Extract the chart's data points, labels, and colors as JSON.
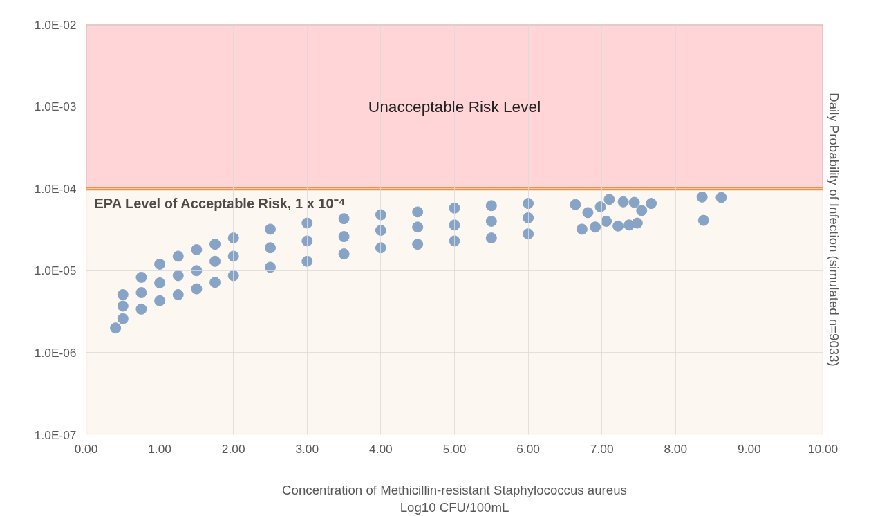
{
  "chart_data": {
    "type": "scatter",
    "xlabel": "Concentration of Methicillin-resistant Staphylococcus aureus\nLog10 CFU/100mL",
    "ylabel": "Daily Probability of Infection (simulated n=9033)",
    "x": [
      0.4,
      0.5,
      0.5,
      0.5,
      0.75,
      0.75,
      0.75,
      1.0,
      1.0,
      1.0,
      1.25,
      1.25,
      1.25,
      1.5,
      1.5,
      1.5,
      1.75,
      1.75,
      1.75,
      2.0,
      2.0,
      2.0,
      2.5,
      2.5,
      2.5,
      3.0,
      3.0,
      3.0,
      3.5,
      3.5,
      3.5,
      4.0,
      4.0,
      4.0,
      4.5,
      4.5,
      4.5,
      5.0,
      5.0,
      5.0,
      5.5,
      5.5,
      5.5,
      6.0,
      6.0,
      6.0,
      6.64,
      6.73,
      6.81,
      6.91,
      6.98,
      7.06,
      7.1,
      7.22,
      7.29,
      7.37,
      7.44,
      7.48,
      7.54,
      7.67,
      8.36,
      8.38,
      8.62
    ],
    "values": [
      2e-06,
      5.1e-06,
      3.7e-06,
      2.6e-06,
      8.3e-06,
      5.4e-06,
      3.4e-06,
      1.2e-05,
      7.1e-06,
      4.3e-06,
      1.5e-05,
      8.7e-06,
      5.1e-06,
      1.8e-05,
      1e-05,
      6e-06,
      2.1e-05,
      1.3e-05,
      7.2e-06,
      2.5e-05,
      1.5e-05,
      8.7e-06,
      3.2e-05,
      1.9e-05,
      1.1e-05,
      3.8e-05,
      2.3e-05,
      1.3e-05,
      4.3e-05,
      2.6e-05,
      1.6e-05,
      4.8e-05,
      3.1e-05,
      1.9e-05,
      5.2e-05,
      3.4e-05,
      2.1e-05,
      5.8e-05,
      3.6e-05,
      2.3e-05,
      6.2e-05,
      4e-05,
      2.5e-05,
      6.6e-05,
      4.4e-05,
      2.8e-05,
      6.4e-05,
      3.2e-05,
      5.1e-05,
      3.4e-05,
      6e-05,
      4e-05,
      7.4e-05,
      3.5e-05,
      6.9e-05,
      3.6e-05,
      6.8e-05,
      3.8e-05,
      5.4e-05,
      6.6e-05,
      7.9e-05,
      4.1e-05,
      7.8e-05
    ],
    "color": "#87a3c6",
    "marker": "circle",
    "log": "y",
    "xlim": [
      0,
      10
    ],
    "xticks": [
      {
        "value": 0,
        "label": "0.00"
      },
      {
        "value": 1,
        "label": "1.00"
      },
      {
        "value": 2,
        "label": "2.00"
      },
      {
        "value": 3,
        "label": "3.00"
      },
      {
        "value": 4,
        "label": "4.00"
      },
      {
        "value": 5,
        "label": "5.00"
      },
      {
        "value": 6,
        "label": "6.00"
      },
      {
        "value": 7,
        "label": "7.00"
      },
      {
        "value": 8,
        "label": "8.00"
      },
      {
        "value": 9,
        "label": "9.00"
      },
      {
        "value": 10,
        "label": "10.00"
      }
    ],
    "ylim": [
      1e-07,
      0.01
    ],
    "yticks": [
      {
        "value": 1e-07,
        "label": "1.0E-07"
      },
      {
        "value": 1e-06,
        "label": "1.0E-06"
      },
      {
        "value": 1e-05,
        "label": "1.0E-05"
      },
      {
        "value": 0.0001,
        "label": "1.0E-04"
      },
      {
        "value": 0.001,
        "label": "1.0E-03"
      },
      {
        "value": 0.01,
        "label": "1.0E-02"
      }
    ],
    "grid": true,
    "bands": [
      {
        "axis": "y",
        "from": 0.0001,
        "to": 0.01,
        "label": "Unacceptable Risk Level",
        "color": "#ffd5d7"
      },
      {
        "axis": "y",
        "from": 1e-07,
        "to": 0.0001,
        "color": "#fdf7f1"
      }
    ],
    "ref_lines": [
      {
        "axis": "y",
        "value": 0.0001,
        "label": "EPA Level of Acceptable Risk, 1 x 10⁻⁴",
        "color": "#ed9447"
      }
    ]
  }
}
